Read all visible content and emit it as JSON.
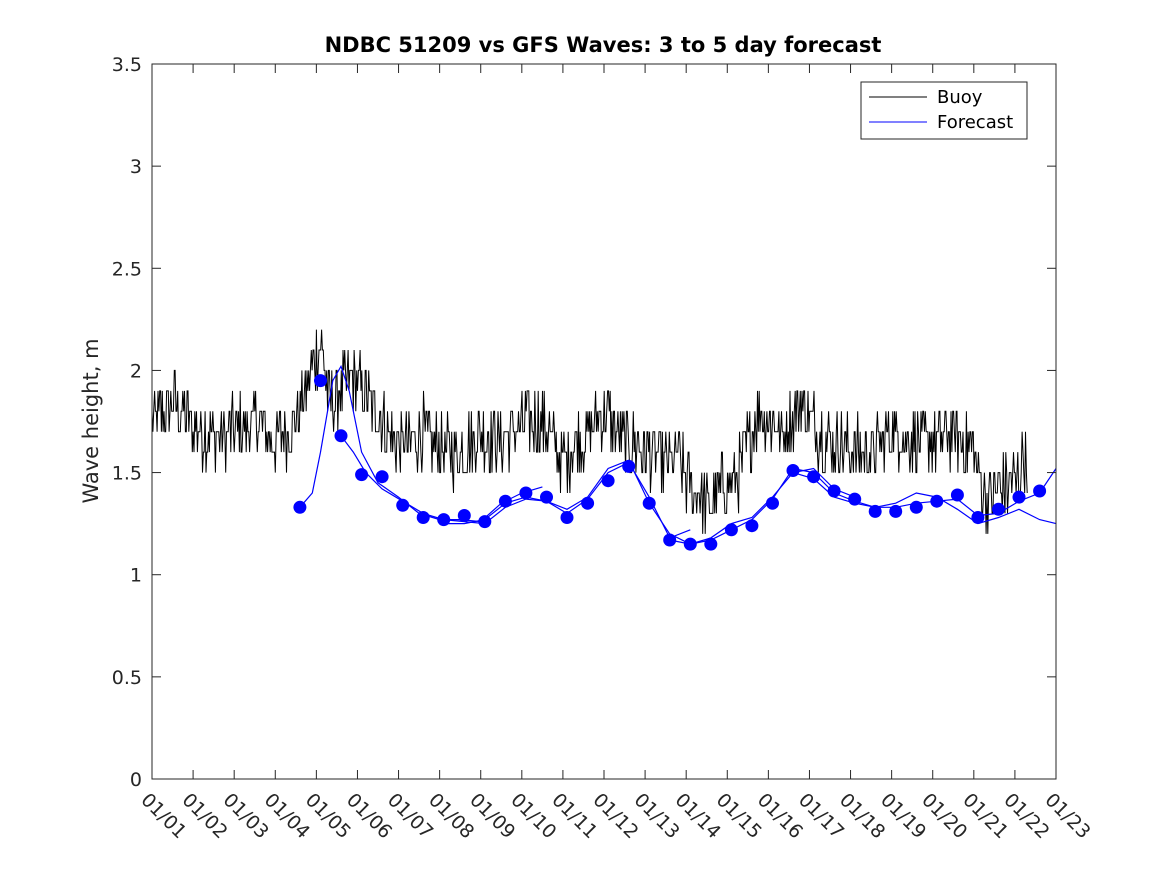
{
  "chart_data": {
    "type": "line",
    "title": "NDBC 51209 vs GFS Waves: 3 to 5 day forecast",
    "xlabel": "",
    "ylabel": "Wave height, m",
    "ylim": [
      0,
      3.5
    ],
    "yticks": [
      0,
      0.5,
      1,
      1.5,
      2,
      2.5,
      3,
      3.5
    ],
    "ytick_labels": [
      "0",
      "0.5",
      "1",
      "1.5",
      "2",
      "2.5",
      "3",
      "3.5"
    ],
    "xlim": [
      1,
      23
    ],
    "xtick_values": [
      1,
      2,
      3,
      4,
      5,
      6,
      7,
      8,
      9,
      10,
      11,
      12,
      13,
      14,
      15,
      16,
      17,
      18,
      19,
      20,
      21,
      22,
      23
    ],
    "xtick_labels": [
      "01/01",
      "01/02",
      "01/03",
      "01/04",
      "01/05",
      "01/06",
      "01/07",
      "01/08",
      "01/09",
      "01/10",
      "01/11",
      "01/12",
      "01/13",
      "01/14",
      "01/15",
      "01/16",
      "01/17",
      "01/18",
      "01/19",
      "01/20",
      "01/21",
      "01/22",
      "01/23"
    ],
    "legend_position": "top-right",
    "legend": [
      "Buoy",
      "Forecast"
    ],
    "colors": {
      "buoy": "#000000",
      "forecast": "#0000ff"
    },
    "buoy": {
      "name": "Buoy",
      "x": [
        1.0,
        1.5,
        2.0,
        2.5,
        3.0,
        3.5,
        4.0,
        4.5,
        4.9,
        5.1,
        5.3,
        5.6,
        5.9,
        6.3,
        6.6,
        6.9,
        7.3,
        7.6,
        8.0,
        8.5,
        9.0,
        9.5,
        10.0,
        10.5,
        11.0,
        11.3,
        11.7,
        12.0,
        12.3,
        12.6,
        13.0,
        13.5,
        13.8,
        14.0,
        14.3,
        14.6,
        14.9,
        15.2,
        15.5,
        15.8,
        16.0,
        16.4,
        16.8,
        17.2,
        17.6,
        18.0,
        18.5,
        19.0,
        19.5,
        20.0,
        20.5,
        21.0,
        21.3,
        21.6,
        22.0,
        22.3
      ],
      "y": [
        1.75,
        1.85,
        1.72,
        1.68,
        1.7,
        1.75,
        1.65,
        1.75,
        2.0,
        2.15,
        1.85,
        1.9,
        1.95,
        1.85,
        1.75,
        1.65,
        1.65,
        1.7,
        1.6,
        1.6,
        1.7,
        1.65,
        1.75,
        1.75,
        1.55,
        1.65,
        1.7,
        1.8,
        1.7,
        1.65,
        1.6,
        1.55,
        1.6,
        1.45,
        1.4,
        1.35,
        1.45,
        1.45,
        1.65,
        1.8,
        1.75,
        1.7,
        1.85,
        1.7,
        1.65,
        1.6,
        1.6,
        1.7,
        1.65,
        1.65,
        1.7,
        1.6,
        1.35,
        1.42,
        1.45,
        1.6
      ]
    },
    "forecast_lines": [
      {
        "x": [
          4.6,
          4.9,
          5.1,
          5.4,
          5.6,
          5.8,
          6.1,
          6.5,
          7.0,
          7.5,
          8.0,
          8.5,
          9.0,
          9.5,
          10.0,
          10.5
        ],
        "y": [
          1.33,
          1.4,
          1.6,
          1.95,
          2.02,
          1.9,
          1.6,
          1.45,
          1.38,
          1.3,
          1.27,
          1.27,
          1.26,
          1.35,
          1.4,
          1.43
        ]
      },
      {
        "x": [
          5.6,
          5.9,
          6.2,
          6.6,
          7.1,
          7.6,
          8.1,
          8.6,
          9.1,
          9.6,
          10.1,
          10.6,
          11.1,
          11.6,
          12.1,
          12.6,
          13.1,
          13.6,
          14.1
        ],
        "y": [
          1.68,
          1.6,
          1.5,
          1.42,
          1.36,
          1.3,
          1.27,
          1.26,
          1.25,
          1.33,
          1.37,
          1.36,
          1.3,
          1.37,
          1.5,
          1.55,
          1.38,
          1.18,
          1.22
        ]
      },
      {
        "x": [
          8.1,
          8.6,
          9.1,
          9.6,
          10.1,
          10.6,
          11.1,
          11.6,
          12.1,
          12.6,
          13.1,
          13.6,
          14.1,
          14.6,
          15.1,
          15.6,
          16.1,
          16.6,
          17.1,
          17.6,
          18.1
        ],
        "y": [
          1.25,
          1.25,
          1.27,
          1.35,
          1.38,
          1.36,
          1.32,
          1.38,
          1.52,
          1.56,
          1.35,
          1.2,
          1.15,
          1.18,
          1.25,
          1.28,
          1.38,
          1.5,
          1.52,
          1.42,
          1.38
        ]
      },
      {
        "x": [
          13.6,
          14.1,
          14.6,
          15.1,
          15.6,
          16.1,
          16.6,
          17.1,
          17.6,
          18.1,
          18.6,
          19.1,
          19.6,
          20.1,
          20.6,
          21.1,
          21.6,
          22.1,
          22.6,
          23.0
        ],
        "y": [
          1.17,
          1.15,
          1.17,
          1.22,
          1.27,
          1.37,
          1.52,
          1.5,
          1.4,
          1.36,
          1.33,
          1.33,
          1.35,
          1.36,
          1.37,
          1.29,
          1.3,
          1.36,
          1.4,
          1.52
        ]
      },
      {
        "x": [
          16.6,
          17.1,
          17.6,
          18.1,
          18.6,
          19.1,
          19.6,
          20.1,
          20.6,
          21.1,
          21.6,
          22.1,
          22.6,
          23.0
        ],
        "y": [
          1.5,
          1.47,
          1.38,
          1.35,
          1.33,
          1.35,
          1.4,
          1.38,
          1.32,
          1.25,
          1.28,
          1.32,
          1.27,
          1.25
        ]
      }
    ],
    "forecast_markers": {
      "name": "Forecast",
      "x": [
        4.6,
        5.1,
        5.6,
        6.1,
        6.6,
        7.1,
        7.6,
        8.1,
        8.6,
        9.1,
        9.6,
        10.1,
        10.6,
        11.1,
        11.6,
        12.1,
        12.6,
        13.1,
        13.6,
        14.1,
        14.6,
        15.1,
        15.6,
        16.1,
        16.6,
        17.1,
        17.6,
        18.1,
        18.6,
        19.1,
        19.6,
        20.1,
        20.6,
        21.1,
        21.6,
        22.1,
        22.6
      ],
      "y": [
        1.33,
        1.95,
        1.68,
        1.49,
        1.48,
        1.34,
        1.28,
        1.27,
        1.29,
        1.26,
        1.36,
        1.4,
        1.38,
        1.28,
        1.35,
        1.46,
        1.53,
        1.35,
        1.17,
        1.15,
        1.15,
        1.22,
        1.24,
        1.35,
        1.51,
        1.48,
        1.41,
        1.37,
        1.31,
        1.31,
        1.33,
        1.36,
        1.39,
        1.28,
        1.32,
        1.38,
        1.41
      ]
    }
  }
}
